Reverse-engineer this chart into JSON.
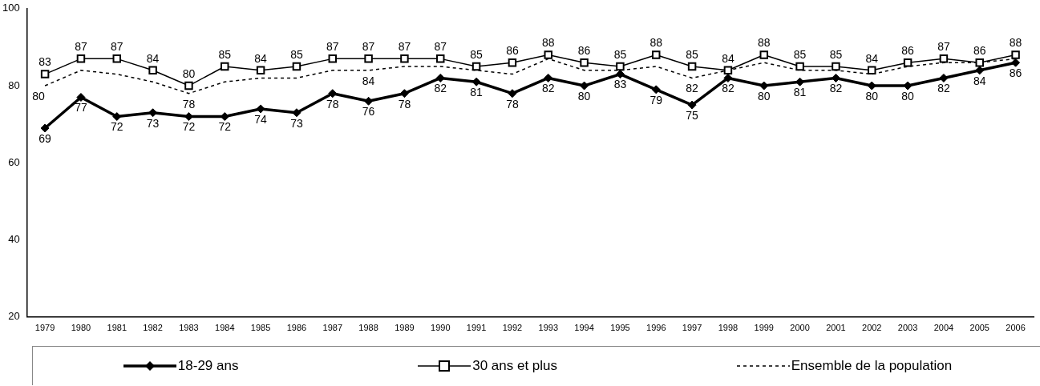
{
  "chart_data": {
    "type": "line",
    "categories": [
      "1979",
      "1980",
      "1981",
      "1982",
      "1983",
      "1984",
      "1985",
      "1986",
      "1987",
      "1988",
      "1989",
      "1990",
      "1991",
      "1992",
      "1993",
      "1994",
      "1995",
      "1996",
      "1997",
      "1998",
      "1999",
      "2000",
      "2001",
      "2002",
      "2003",
      "2004",
      "2005",
      "2006"
    ],
    "ylim": [
      20,
      100
    ],
    "yticks": [
      20,
      40,
      60,
      80,
      100
    ],
    "grid": false,
    "legend": "bottom",
    "series": [
      {
        "name": "18-29 ans",
        "color": "#000000",
        "marker": "diamond",
        "line_style": "solid",
        "values": [
          69,
          77,
          72,
          73,
          72,
          72,
          74,
          73,
          78,
          76,
          78,
          82,
          81,
          78,
          82,
          80,
          83,
          79,
          75,
          82,
          80,
          81,
          82,
          80,
          80,
          82,
          84,
          86
        ],
        "value_labels": [
          "69",
          "77",
          "72",
          "73",
          "72",
          "72",
          "74",
          "73",
          "78",
          "76",
          "78",
          "82",
          "81",
          "78",
          "82",
          "80",
          "83",
          "79",
          "75",
          "82",
          "80",
          "81",
          "82",
          "80",
          "80",
          "82",
          "84",
          "86"
        ]
      },
      {
        "name": "30 ans et plus",
        "color": "#000000",
        "marker": "square",
        "line_style": "solid",
        "values": [
          83,
          87,
          87,
          84,
          80,
          85,
          84,
          85,
          87,
          87,
          87,
          87,
          85,
          86,
          88,
          86,
          85,
          88,
          85,
          84,
          88,
          85,
          85,
          84,
          86,
          87,
          86,
          88
        ],
        "value_labels": [
          "83",
          "87",
          "87",
          "84",
          "80",
          "85",
          "84",
          "85",
          "87",
          "87",
          "87",
          "87",
          "85",
          "86",
          "88",
          "86",
          "85",
          "88",
          "85",
          "84",
          "88",
          "85",
          "85",
          "84",
          "86",
          "87",
          "86",
          "88"
        ]
      },
      {
        "name": "Ensemble de la population",
        "color": "#000000",
        "marker": "none",
        "line_style": "dashed",
        "values": [
          80,
          84,
          83,
          81,
          78,
          81,
          82,
          82,
          84,
          84,
          85,
          85,
          84,
          83,
          87,
          84,
          84,
          85,
          82,
          84,
          86,
          84,
          84,
          83,
          85,
          86,
          86,
          87
        ],
        "value_labels": [
          "80",
          null,
          null,
          null,
          "78",
          null,
          null,
          null,
          null,
          "84",
          null,
          null,
          null,
          null,
          null,
          null,
          null,
          null,
          "82",
          null,
          null,
          null,
          null,
          null,
          null,
          null,
          null,
          null
        ]
      }
    ]
  }
}
